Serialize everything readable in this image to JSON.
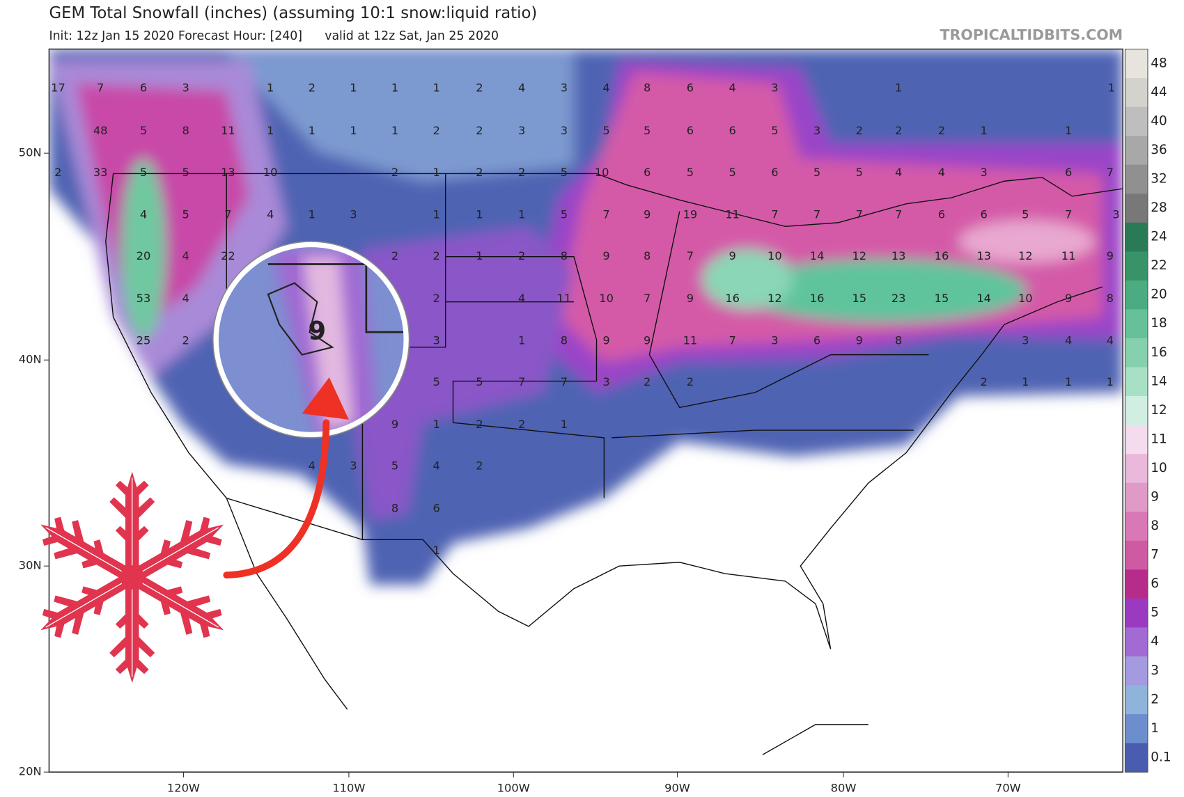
{
  "header": {
    "title": "GEM Total Snowfall (inches) (assuming 10:1 snow:liquid ratio)",
    "init": "Init: 12z Jan 15 2020",
    "forecast_hour": "Forecast Hour: [240]",
    "valid": "valid at 12z Sat, Jan 25 2020",
    "brand": "TROPICALTIDBITS.COM"
  },
  "lat_labels": [
    "50N",
    "40N",
    "30N",
    "20N"
  ],
  "lon_labels": [
    "120W",
    "110W",
    "100W",
    "90W",
    "80W",
    "70W"
  ],
  "colorbar_labels": [
    48,
    44,
    40,
    36,
    32,
    28,
    24,
    22,
    20,
    18,
    16,
    14,
    12,
    11,
    10,
    9,
    8,
    7,
    6,
    5,
    4,
    3,
    2,
    1,
    0.1
  ],
  "magnifier_label": 9,
  "contour_labels": [
    [
      17,
      7,
      6,
      3,
      1,
      2,
      1,
      1,
      1,
      2,
      4,
      3,
      4,
      8,
      6,
      4,
      3,
      1,
      1
    ],
    [
      48,
      5,
      8,
      11,
      1,
      1,
      1,
      1,
      2,
      2,
      3,
      3,
      5,
      5,
      6,
      6,
      5,
      3,
      2,
      2,
      2,
      1,
      1
    ],
    [
      2,
      33,
      5,
      5,
      13,
      10,
      2,
      1,
      2,
      2,
      5,
      10,
      6,
      5,
      5,
      6,
      5,
      5,
      4,
      4,
      3,
      6,
      7
    ],
    [
      4,
      5,
      7,
      4,
      1,
      3,
      1,
      1,
      1,
      5,
      7,
      9,
      19,
      11,
      7,
      7,
      7,
      7,
      6,
      6,
      5,
      7,
      3
    ],
    [
      20,
      4,
      22,
      2,
      2,
      1,
      2,
      8,
      9,
      8,
      7,
      9,
      10,
      14,
      12,
      13,
      16,
      13,
      12,
      11,
      9
    ],
    [
      53,
      4,
      2,
      4,
      11,
      10,
      7,
      9,
      16,
      12,
      16,
      15,
      23,
      15,
      14,
      10,
      9,
      8
    ],
    [
      25,
      2,
      3,
      1,
      8,
      9,
      9,
      11,
      7,
      3,
      6,
      9,
      8,
      3,
      4,
      4
    ],
    [
      5,
      5,
      7,
      7,
      3,
      2,
      2,
      2,
      1,
      1,
      1
    ],
    [
      9,
      1,
      2,
      2,
      1
    ],
    [
      4,
      3,
      5,
      4,
      2
    ],
    [
      8,
      6
    ],
    [
      1
    ]
  ]
}
